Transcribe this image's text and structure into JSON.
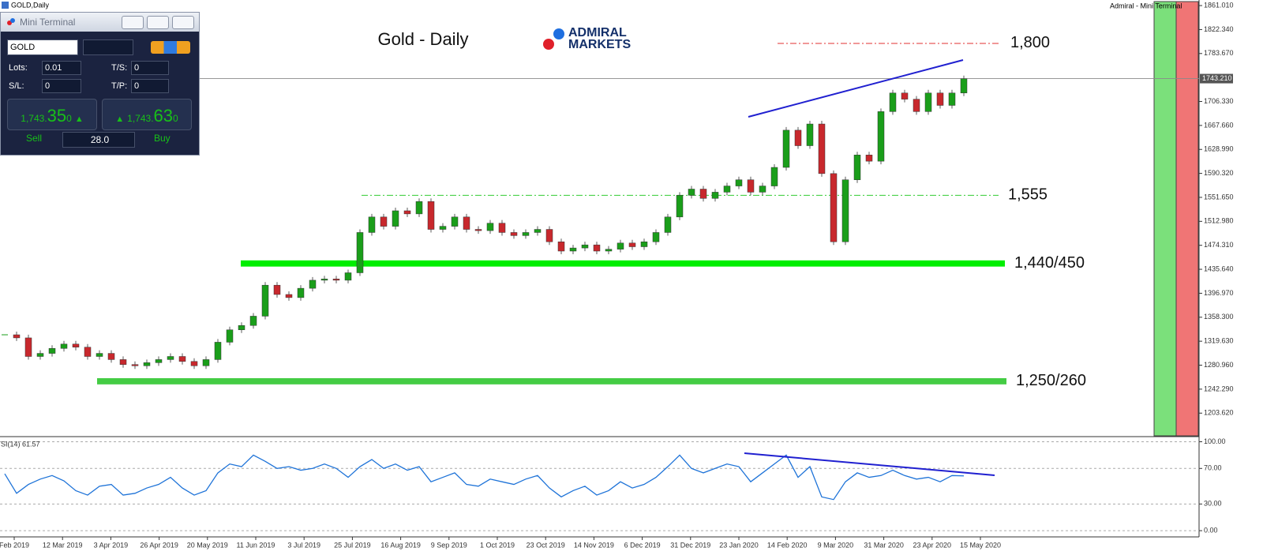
{
  "window": {
    "title": "GOLD,Daily",
    "right_title": "Admiral - Mini Terminal"
  },
  "logo": [
    "ADMIRAL",
    "MARKETS"
  ],
  "mini_terminal": {
    "title": "Mini Terminal",
    "symbol": "GOLD",
    "lots_label": "Lots:",
    "lots": "0.01",
    "ts_label": "T/S:",
    "ts": "0",
    "sl_label": "S/L:",
    "sl": "0",
    "tp_label": "T/P:",
    "tp": "0",
    "sell_price": {
      "main": "1,743.",
      "big": "35",
      "small": "0"
    },
    "buy_price": {
      "main": "1,743.",
      "big": "63",
      "small": "0"
    },
    "sell": "Sell",
    "spread": "28.0",
    "buy": "Buy"
  },
  "chart_data": [
    {
      "type": "candlestick",
      "title": "Gold - Daily",
      "up_color": "#1a9e1a",
      "down_color": "#c8282d",
      "values": [
        1330,
        1325,
        1295,
        1300,
        1308,
        1315,
        1310,
        1295,
        1300,
        1290,
        1282,
        1280,
        1285,
        1290,
        1295,
        1287,
        1280,
        1290,
        1318,
        1338,
        1345,
        1360,
        1410,
        1395,
        1390,
        1405,
        1418,
        1420,
        1418,
        1430,
        1495,
        1520,
        1505,
        1530,
        1525,
        1545,
        1500,
        1505,
        1520,
        1500,
        1498,
        1510,
        1495,
        1490,
        1495,
        1500,
        1480,
        1465,
        1470,
        1475,
        1465,
        1468,
        1478,
        1472,
        1480,
        1495,
        1520,
        1555,
        1565,
        1550,
        1560,
        1570,
        1580,
        1560,
        1570,
        1600,
        1660,
        1635,
        1670,
        1590,
        1480,
        1580,
        1620,
        1610,
        1690,
        1720,
        1710,
        1690,
        1720,
        1700,
        1720,
        1743
      ],
      "date_labels": [
        "Feb 2019",
        "12 Mar 2019",
        "3 Apr 2019",
        "26 Apr 2019",
        "20 May 2019",
        "11 Jun 2019",
        "3 Jul 2019",
        "25 Jul 2019",
        "16 Aug 2019",
        "9 Sep 2019",
        "1 Oct 2019",
        "23 Oct 2019",
        "14 Nov 2019",
        "6 Dec 2019",
        "31 Dec 2019",
        "23 Jan 2020",
        "14 Feb 2020",
        "9 Mar 2020",
        "31 Mar 2020",
        "23 Apr 2020",
        "15 May 2020"
      ],
      "ylim": [
        1167,
        1870
      ],
      "yticks": [
        {
          "value": 1861.01,
          "label": "1861.010"
        },
        {
          "value": 1822.34,
          "label": "1822.340"
        },
        {
          "value": 1783.67,
          "label": "1783.670"
        },
        {
          "value": 1706.33,
          "label": "1706.330"
        },
        {
          "value": 1667.66,
          "label": "1667.660"
        },
        {
          "value": 1628.99,
          "label": "1628.990"
        },
        {
          "value": 1590.32,
          "label": "1590.320"
        },
        {
          "value": 1551.65,
          "label": "1551.650"
        },
        {
          "value": 1512.98,
          "label": "1512.980"
        },
        {
          "value": 1474.31,
          "label": "1474.310"
        },
        {
          "value": 1435.64,
          "label": "1435.640"
        },
        {
          "value": 1396.97,
          "label": "1396.970"
        },
        {
          "value": 1358.3,
          "label": "1358.300"
        },
        {
          "value": 1319.63,
          "label": "1319.630"
        },
        {
          "value": 1280.96,
          "label": "1280.960"
        },
        {
          "value": 1242.29,
          "label": "1242.290"
        },
        {
          "value": 1203.62,
          "label": "1203.620"
        }
      ],
      "current_price": {
        "value": 1743.21,
        "label": "1743.210"
      },
      "levels": [
        {
          "label": "1,800",
          "value": 1800,
          "color": "#e03030",
          "style": "dash-dot"
        },
        {
          "label": "1,555",
          "value": 1555,
          "color": "#33cc33",
          "style": "dash-dot"
        },
        {
          "label": "1,440/450",
          "low": 1440,
          "high": 1450,
          "color": "#00ee00",
          "style": "band"
        },
        {
          "label": "1,250/260",
          "low": 1250,
          "high": 1260,
          "color": "#44cc44",
          "style": "band"
        }
      ]
    },
    {
      "type": "line",
      "title": "SI(14) 61.57",
      "color": "#1e73d8",
      "values": [
        64,
        42,
        52,
        58,
        62,
        56,
        45,
        40,
        50,
        52,
        40,
        42,
        48,
        52,
        60,
        48,
        40,
        45,
        65,
        75,
        72,
        85,
        78,
        70,
        72,
        68,
        70,
        75,
        70,
        60,
        72,
        80,
        70,
        75,
        68,
        72,
        55,
        60,
        65,
        52,
        50,
        58,
        55,
        52,
        58,
        62,
        48,
        38,
        45,
        50,
        40,
        45,
        55,
        48,
        52,
        60,
        72,
        85,
        70,
        65,
        70,
        75,
        72,
        55,
        65,
        75,
        85,
        60,
        72,
        38,
        35,
        55,
        65,
        60,
        62,
        68,
        62,
        58,
        60,
        55,
        62,
        61.57
      ],
      "ylim": [
        -7,
        104
      ],
      "yticks": [
        {
          "value": 100,
          "label": "100.00"
        },
        {
          "value": 70,
          "label": "70.00"
        },
        {
          "value": 30,
          "label": "30.00"
        },
        {
          "value": 0,
          "label": "0.00"
        }
      ]
    }
  ]
}
